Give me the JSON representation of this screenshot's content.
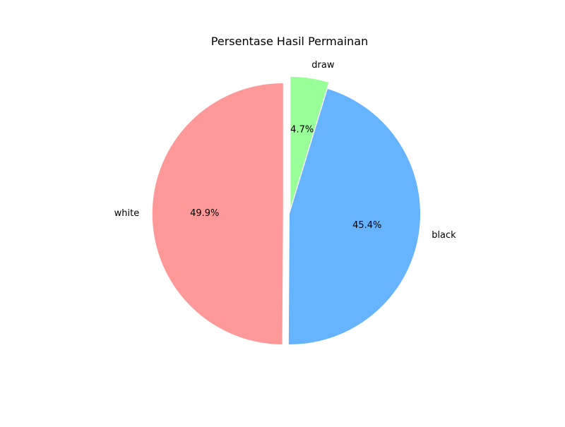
{
  "chart_data": {
    "type": "pie",
    "title": "Persentase Hasil Permainan",
    "start_angle_deg": 90,
    "direction": "counterclockwise",
    "slices": [
      {
        "label": "white",
        "value": 49.9,
        "pct_label": "49.9%",
        "color": "#ff9999",
        "exploded": true
      },
      {
        "label": "black",
        "value": 45.4,
        "pct_label": "45.4%",
        "color": "#66b3ff",
        "exploded": false
      },
      {
        "label": "draw",
        "value": 4.7,
        "pct_label": "4.7%",
        "color": "#99ff99",
        "exploded": true
      }
    ]
  }
}
